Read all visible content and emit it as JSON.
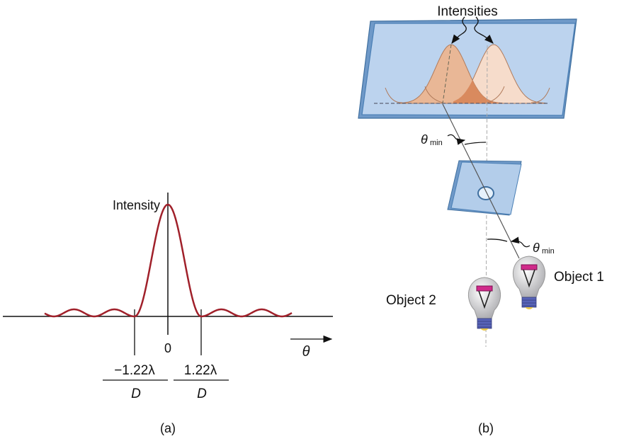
{
  "panel_a": {
    "caption": "(a)",
    "y_label": "Intensity",
    "origin_label": "0",
    "x_label": "θ",
    "minus_tick": {
      "numerator": "−1.22λ",
      "denominator": "D"
    },
    "plus_tick": {
      "numerator": "1.22λ",
      "denominator": "D"
    },
    "curve_color": "#a0202a"
  },
  "panel_b": {
    "caption": "(b)",
    "intensities_label": "Intensities",
    "theta_min_top": {
      "symbol": "θ",
      "sub": "min"
    },
    "theta_min_bottom": {
      "symbol": "θ",
      "sub": "min"
    },
    "object1_label": "Object 1",
    "object2_label": "Object 2",
    "screen_color": "#bcd3ee",
    "bell_left_color": "#e9b796",
    "bell_right_color": "#f6dccb",
    "overlap_color": "#d98a5e"
  }
}
